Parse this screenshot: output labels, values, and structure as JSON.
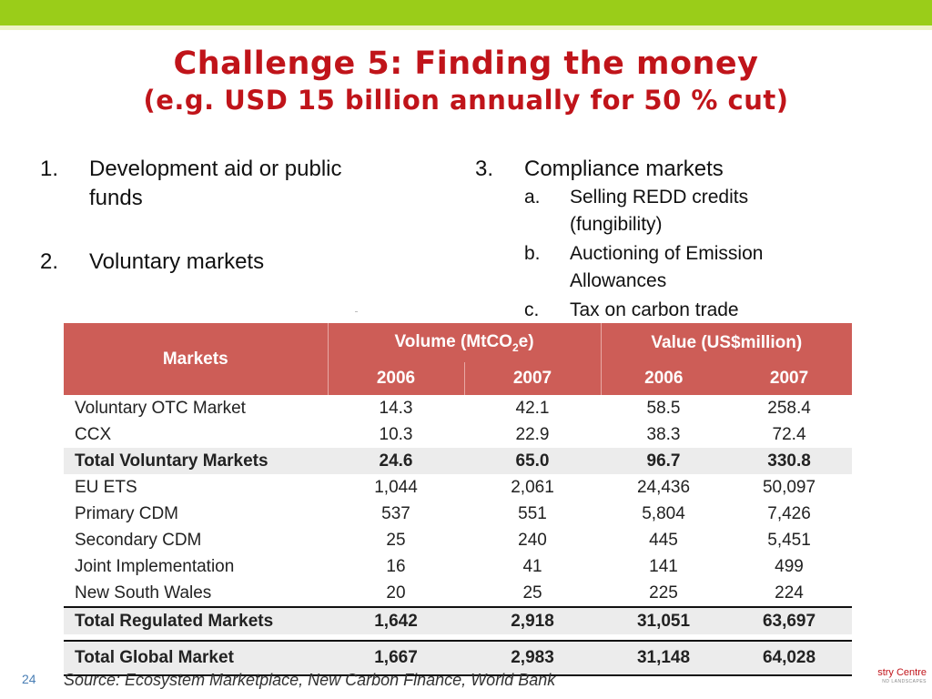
{
  "title": {
    "line1": "Challenge 5: Finding the money",
    "line2": "(e.g.  USD 15 billion annually for 50 % cut)"
  },
  "left_list": [
    {
      "num": "1.",
      "text": "Development aid or public funds"
    },
    {
      "num": "2.",
      "text": "Voluntary markets"
    }
  ],
  "right_list": {
    "num": "3.",
    "text": "Compliance markets",
    "subitems": [
      {
        "num": "a.",
        "text": "Selling REDD credits (fungibility)"
      },
      {
        "num": "b.",
        "text": "Auctioning of Emission Allowances"
      },
      {
        "num": "c.",
        "text": "Tax on carbon trade"
      }
    ]
  },
  "table": {
    "markets_header": "Markets",
    "volume_header": "Volume (MtCO",
    "volume_sub": "2",
    "volume_tail": "e)",
    "value_header": "Value (US$million)",
    "years": [
      "2006",
      "2007",
      "2006",
      "2007"
    ],
    "rows": [
      {
        "market": "Voluntary OTC Market",
        "v2006": "14.3",
        "v2007": "42.1",
        "u2006": "58.5",
        "u2007": "258.4"
      },
      {
        "market": "CCX",
        "v2006": "10.3",
        "v2007": "22.9",
        "u2006": "38.3",
        "u2007": "72.4"
      },
      {
        "market": "Total Voluntary Markets",
        "v2006": "24.6",
        "v2007": "65.0",
        "u2006": "96.7",
        "u2007": "330.8"
      },
      {
        "market": "EU ETS",
        "v2006": "1,044",
        "v2007": "2,061",
        "u2006": "24,436",
        "u2007": "50,097"
      },
      {
        "market": "Primary CDM",
        "v2006": "537",
        "v2007": "551",
        "u2006": "5,804",
        "u2007": "7,426"
      },
      {
        "market": "Secondary CDM",
        "v2006": "25",
        "v2007": "240",
        "u2006": "445",
        "u2007": "5,451"
      },
      {
        "market": "Joint Implementation",
        "v2006": "16",
        "v2007": "41",
        "u2006": "141",
        "u2007": "499"
      },
      {
        "market": "New South Wales",
        "v2006": "20",
        "v2007": "25",
        "u2006": "225",
        "u2007": "224"
      },
      {
        "market": "Total Regulated Markets",
        "v2006": "1,642",
        "v2007": "2,918",
        "u2006": "31,051",
        "u2007": "63,697"
      },
      {
        "market": "Total Global Market",
        "v2006": "1,667",
        "v2007": "2,983",
        "u2006": "31,148",
        "u2007": "64,028"
      }
    ]
  },
  "source": "Source: Ecosystem Marketplace, New Carbon Finance, World Bank",
  "page_number": "24",
  "logo": {
    "line1": "stry Centre",
    "line2": "ND LANDSCAPES"
  },
  "colors": {
    "accent_bar": "#9acd19",
    "title": "#c0141a",
    "table_header": "#cd5d57"
  }
}
